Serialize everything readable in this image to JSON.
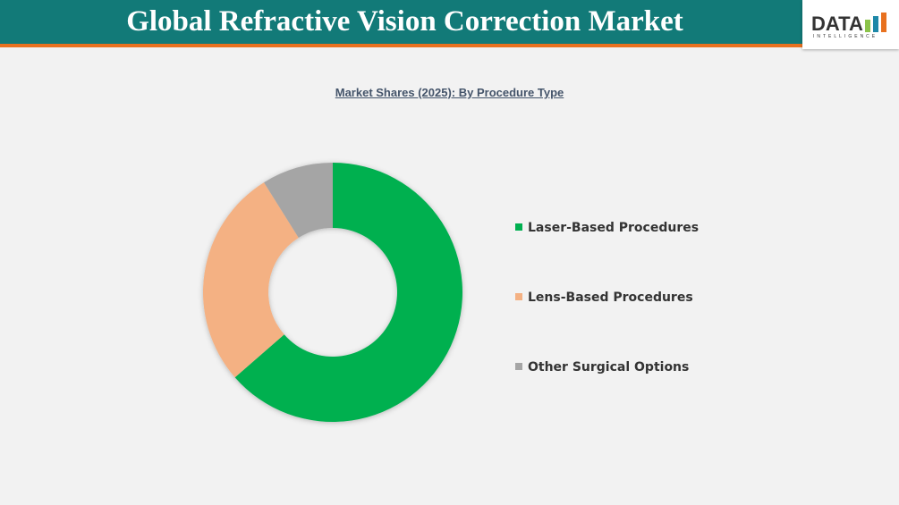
{
  "header": {
    "title": "Global Refractive Vision Correction Market"
  },
  "logo": {
    "text": "DATA",
    "subtext": "INTELLIGENCE",
    "colors": [
      "#8bc34a",
      "#1e88a8",
      "#e8711f"
    ]
  },
  "chart_data": {
    "type": "pie",
    "donut": true,
    "title": "Market Shares (2025): By Procedure Type",
    "categories": [
      "Laser-Based Procedures",
      "Lens-Based Procedures",
      "Other Surgical Options"
    ],
    "values": [
      63.6,
      27.5,
      8.9
    ],
    "unit": "%",
    "colors": [
      "#00b050",
      "#f4b183",
      "#a5a5a5"
    ],
    "legend": "right"
  }
}
